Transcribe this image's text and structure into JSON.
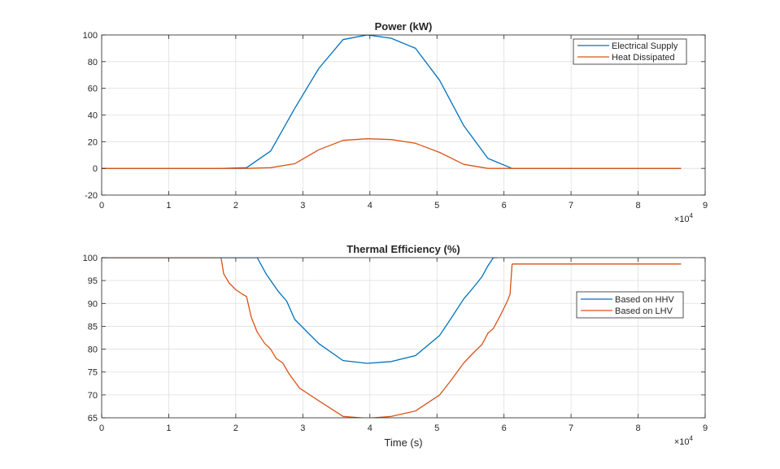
{
  "chart_data": [
    {
      "type": "line",
      "title": "Power (kW)",
      "xlabel": "",
      "ylabel": "",
      "xlim": [
        0,
        90000
      ],
      "ylim": [
        -20,
        100
      ],
      "x_ticks": [
        0,
        10000,
        20000,
        30000,
        40000,
        50000,
        60000,
        70000,
        80000,
        90000
      ],
      "x_tick_labels": [
        "0",
        "1",
        "2",
        "3",
        "4",
        "5",
        "6",
        "7",
        "8",
        "9"
      ],
      "x_exponent": {
        "base": "×10",
        "power": "4"
      },
      "y_ticks": [
        -20,
        0,
        20,
        40,
        60,
        80,
        100
      ],
      "y_tick_labels": [
        "-20",
        "0",
        "20",
        "40",
        "60",
        "80",
        "100"
      ],
      "grid": true,
      "legend": "top-right",
      "series": [
        {
          "name": "Electrical Supply",
          "color": "#0072BD",
          "x": [
            0,
            18000,
            21600,
            25200,
            28800,
            32400,
            36000,
            39600,
            43200,
            46800,
            50400,
            54000,
            57600,
            61200,
            64800,
            72000,
            86400
          ],
          "y": [
            0,
            0,
            0.5,
            13,
            45,
            75,
            96.5,
            100,
            97.5,
            90,
            66,
            32,
            7.5,
            0,
            0,
            0,
            0
          ]
        },
        {
          "name": "Heat Dissipated",
          "color": "#D95319",
          "x": [
            0,
            18000,
            21600,
            25200,
            28800,
            32400,
            36000,
            39600,
            43200,
            46800,
            50400,
            54000,
            57600,
            61200,
            64800,
            72000,
            86400
          ],
          "y": [
            0,
            0,
            0,
            0.5,
            3.5,
            14,
            21,
            22.2,
            21.6,
            18.8,
            12,
            3,
            0,
            0,
            0,
            0,
            0
          ]
        }
      ]
    },
    {
      "type": "line",
      "title": "Thermal Efficiency (%)",
      "xlabel": "Time (s)",
      "ylabel": "",
      "xlim": [
        0,
        90000
      ],
      "ylim": [
        65,
        100
      ],
      "x_ticks": [
        0,
        10000,
        20000,
        30000,
        40000,
        50000,
        60000,
        70000,
        80000,
        90000
      ],
      "x_tick_labels": [
        "0",
        "1",
        "2",
        "3",
        "4",
        "5",
        "6",
        "7",
        "8",
        "9"
      ],
      "x_exponent": {
        "base": "×10",
        "power": "4"
      },
      "y_ticks": [
        65,
        70,
        75,
        80,
        85,
        90,
        95,
        100
      ],
      "y_tick_labels": [
        "65",
        "70",
        "75",
        "80",
        "85",
        "90",
        "95",
        "100"
      ],
      "grid": true,
      "legend": "right",
      "series": [
        {
          "name": "Based on HHV",
          "color": "#0072BD",
          "segments": [
            {
              "x": [
                0,
                20000,
                23200,
                24500,
                25200,
                26400,
                27600,
                28800,
                32400,
                36000,
                39600,
                43200,
                46800,
                50400,
                52000,
                54000,
                55500,
                56700,
                57600,
                58400,
                59000
              ],
              "y": [
                100,
                100,
                100,
                96.5,
                95,
                92.5,
                90.5,
                86.5,
                81.2,
                77.5,
                76.9,
                77.3,
                78.6,
                83,
                86.5,
                91,
                93.6,
                95.8,
                98.2,
                100,
                100
              ]
            },
            {
              "x": [
                61200,
                86400
              ],
              "y": [
                98.6,
                98.6
              ]
            }
          ]
        },
        {
          "name": "Based on LHV",
          "color": "#D95319",
          "segments": [
            {
              "x": [
                0,
                17800,
                18200,
                19000,
                20000,
                21000,
                21600,
                22300,
                23200,
                24300,
                25200,
                26000,
                27000,
                28000,
                29500,
                32400,
                36000,
                39600,
                43200,
                46800,
                50400,
                52000,
                54000,
                55500,
                56700,
                57600,
                58400,
                59500,
                60500,
                60900,
                61200
              ],
              "y": [
                100,
                100,
                96.5,
                94.5,
                93,
                92,
                91.5,
                87,
                83.7,
                81.3,
                80,
                78,
                77,
                74.5,
                71.5,
                68.7,
                65.3,
                64.9,
                65.3,
                66.5,
                70,
                73,
                77,
                79.3,
                81,
                83.5,
                84.5,
                87.5,
                90.5,
                92,
                98.6
              ]
            },
            {
              "x": [
                61200,
                86400
              ],
              "y": [
                98.6,
                98.6
              ]
            }
          ]
        }
      ]
    }
  ]
}
